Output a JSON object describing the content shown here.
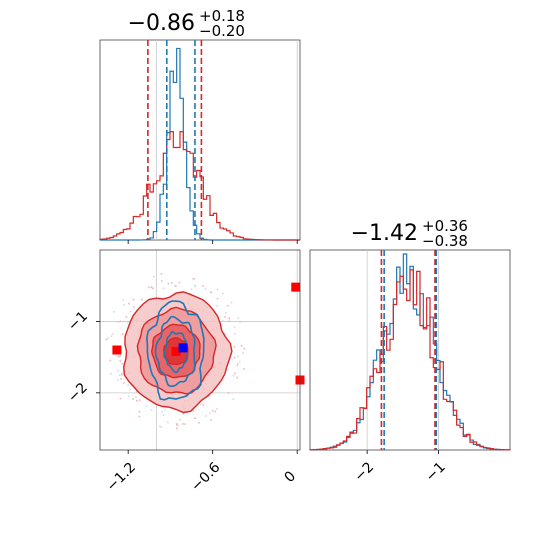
{
  "chart_data": [
    {
      "type": "histogram",
      "panel": "marginal-x",
      "title": {
        "main": "−0.86",
        "sup": "+0.18",
        "sub": "−0.20"
      },
      "xlim": [
        -1.4,
        0.02
      ],
      "xticks": [
        -1.2,
        -0.6,
        0.0
      ],
      "vlines_gray": [
        -1.0,
        0.0
      ],
      "series": [
        {
          "name": "",
          "color": "#1f77b4",
          "center": -0.86,
          "sd": 0.06,
          "n_bins": 60,
          "peak": 0.84,
          "quantiles": [
            -0.94,
            -0.86,
            -0.74
          ]
        },
        {
          "name": "",
          "color": "#d62728",
          "center": -0.86,
          "sd": 0.17,
          "n_bins": 60,
          "peak": 0.46,
          "quantiles": [
            -1.06,
            -0.86,
            -0.68
          ]
        }
      ]
    },
    {
      "type": "histogram",
      "panel": "marginal-y",
      "title": {
        "main": "−1.42",
        "sup": "+0.36",
        "sub": "−0.38"
      },
      "xlim": [
        -2.8,
        -0.0
      ],
      "xticks": [
        -2,
        -1
      ],
      "vlines_gray": [
        -2.0,
        -1.0
      ],
      "series": [
        {
          "name": "",
          "color": "#1f77b4",
          "center": -1.42,
          "sd": 0.37,
          "n_bins": 60,
          "peak": 0.84,
          "quantiles": [
            -1.79,
            -1.42,
            -1.06
          ]
        },
        {
          "name": "",
          "color": "#d62728",
          "center": -1.42,
          "sd": 0.37,
          "n_bins": 60,
          "peak": 0.84,
          "quantiles": [
            -1.8,
            -1.42,
            -1.05
          ]
        }
      ]
    },
    {
      "type": "contour",
      "panel": "joint",
      "xlim": [
        -1.4,
        0.02
      ],
      "ylim": [
        -2.8,
        -0.0
      ],
      "xticks": [
        -1.2,
        -0.6,
        0.0
      ],
      "yticks": [
        -1,
        -2
      ],
      "vlines_gray": [
        -1.0,
        0.0
      ],
      "hlines_gray": [
        -1.0,
        -2.0
      ],
      "series": [
        {
          "name": "",
          "color": "#d62728",
          "center": [
            -0.86,
            -1.42
          ],
          "sd": [
            0.17,
            0.37
          ],
          "filled": true
        },
        {
          "name": "",
          "color": "#1f77b4",
          "center": [
            -0.86,
            -1.42
          ],
          "sd": [
            0.07,
            0.36
          ],
          "filled": false
        }
      ],
      "markers": [
        {
          "x": -1.28,
          "y": -1.4,
          "color": "#ff0000"
        },
        {
          "x": -0.86,
          "y": -1.42,
          "color": "#ff0000"
        },
        {
          "x": -0.81,
          "y": -1.37,
          "color": "#0000ff"
        },
        {
          "x": -0.01,
          "y": -0.52,
          "color": "#ff0000"
        },
        {
          "x": 0.02,
          "y": -1.82,
          "color": "#ff0000"
        }
      ]
    }
  ]
}
